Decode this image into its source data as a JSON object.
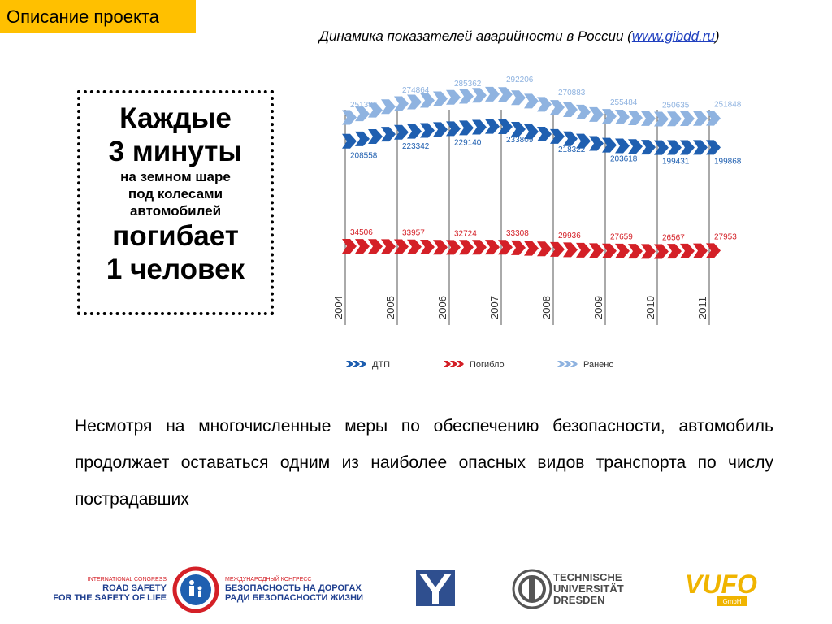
{
  "header": {
    "tag_label": "Описание проекта",
    "subtitle_text": "Динамика показателей аварийности в России",
    "subtitle_open": " (",
    "subtitle_link": "www.gibdd.ru",
    "subtitle_close": ")"
  },
  "callout": {
    "line1": "Каждые",
    "line2": "3 минуты",
    "line3": "на земном шаре",
    "line4": "под колесами",
    "line5": "автомобилей",
    "line6": "погибает",
    "line7": "1 человек"
  },
  "body_text": "Несмотря на многочисленные меры по обеспечению безопасности, автомобиль продолжает оставаться одним из наиболее опасных видов транспорта по числу пострадавших",
  "chart_data": {
    "type": "line",
    "categories": [
      "2004",
      "2005",
      "2006",
      "2007",
      "2008",
      "2009",
      "2010",
      "2011"
    ],
    "series": [
      {
        "name": "Ранено",
        "color": "#8fb3e0",
        "values": [
          251386,
          274864,
          285362,
          292206,
          270883,
          255484,
          250635,
          251848
        ]
      },
      {
        "name": "ДТП",
        "color": "#1f5fb0",
        "values": [
          208558,
          223342,
          229140,
          233809,
          218322,
          203618,
          199431,
          199868
        ]
      },
      {
        "name": "Погибло",
        "color": "#d42027",
        "values": [
          34506,
          33957,
          32724,
          33308,
          29936,
          27659,
          26567,
          27953
        ]
      }
    ],
    "legend": [
      "ДТП",
      "Погибло",
      "Ранено"
    ],
    "legend_position": "bottom"
  },
  "logos": {
    "congress_en_line1": "INTERNATIONAL CONGRESS",
    "congress_en_line2": "ROAD SAFETY",
    "congress_en_line3": "FOR THE SAFETY OF LIFE",
    "congress_ru_line1": "МЕЖДУНАРОДНЫЙ КОНГРЕСС",
    "congress_ru_line2": "БЕЗОПАСНОСТЬ НА ДОРОГАХ",
    "congress_ru_line3": "РАДИ БЕЗОПАСНОСТИ ЖИЗНИ",
    "tu_line1": "TECHNISCHE",
    "tu_line2": "UNIVERSITÄT",
    "tu_line3": "DRESDEN",
    "vufo_main": "VUFO",
    "vufo_sub": "GmbH"
  }
}
